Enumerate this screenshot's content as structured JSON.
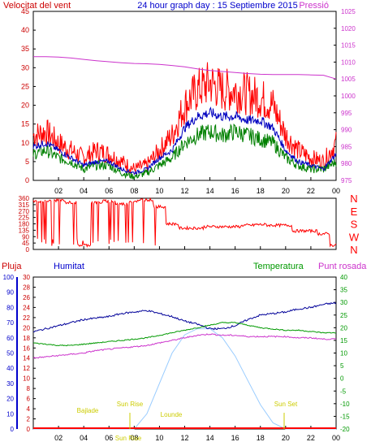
{
  "header": {
    "left": "Velocitat del vent",
    "center": "24 hour graph day : 15 Septiembre 2015",
    "right": "Pressió"
  },
  "colors": {
    "wind_gust": "#ff0000",
    "wind_avg": "#0000c0",
    "wind_green": "#008000",
    "pressure": "#cc33cc",
    "direction": "#ff0000",
    "humidity": "#000099",
    "temperature": "#009900",
    "dewpoint": "#cc33cc",
    "sun": "#99ccff",
    "rain": "#ff0000",
    "labels_yellow": "#cccc00",
    "left_axis_red": "#cc0000",
    "left_axis_blue": "#0000cc",
    "right_axis_green": "#009900"
  },
  "x_ticks": [
    "02",
    "04",
    "06",
    "08",
    "10",
    "12",
    "14",
    "16",
    "18",
    "20",
    "22",
    "00"
  ],
  "chart_data": [
    {
      "type": "line",
      "name": "wind-pressure",
      "left_axis": {
        "ticks": [
          "0",
          "5",
          "10",
          "15",
          "20",
          "25",
          "30",
          "35",
          "40",
          "45"
        ],
        "ylim": [
          0,
          45
        ]
      },
      "right_axis": {
        "ticks": [
          "975",
          "980",
          "985",
          "990",
          "995",
          "1000",
          "1005",
          "1010",
          "1015",
          "1020",
          "1025"
        ],
        "ylim": [
          975,
          1025
        ]
      },
      "x": [
        0,
        1,
        2,
        3,
        4,
        5,
        6,
        7,
        8,
        9,
        10,
        11,
        12,
        13,
        14,
        15,
        16,
        17,
        18,
        19,
        20,
        21,
        22,
        23,
        24
      ],
      "series": [
        {
          "name": "Velocitat del vent",
          "axis": "left",
          "values": [
            12,
            13,
            10,
            8,
            6,
            8,
            7,
            5,
            3,
            4,
            8,
            12,
            20,
            24,
            26,
            24,
            24,
            23,
            22,
            20,
            12,
            8,
            6,
            5,
            10
          ]
        },
        {
          "name": "wind-avg",
          "axis": "left",
          "values": [
            9,
            10,
            8,
            6,
            4,
            5,
            5,
            3,
            2,
            3,
            6,
            8,
            14,
            17,
            18,
            17,
            17,
            16,
            16,
            14,
            8,
            5,
            4,
            3,
            7
          ]
        },
        {
          "name": "wind-green",
          "axis": "left",
          "values": [
            7,
            8,
            6,
            5,
            3,
            4,
            4,
            2,
            1,
            2,
            4,
            6,
            10,
            12,
            13,
            12,
            13,
            12,
            11,
            10,
            6,
            4,
            3,
            3,
            5
          ]
        },
        {
          "name": "Pressió",
          "axis": "right",
          "values": [
            1011.6,
            1011.6,
            1011.5,
            1011.2,
            1010.8,
            1010.4,
            1010.1,
            1009.8,
            1009.6,
            1009.5,
            1009.3,
            1009.0,
            1008.6,
            1008.0,
            1007.5,
            1007.2,
            1006.9,
            1006.6,
            1006.4,
            1006.3,
            1006.3,
            1006.3,
            1006.2,
            1006.1,
            1005.0
          ]
        }
      ]
    },
    {
      "type": "line",
      "name": "wind-direction",
      "right_labels": [
        "N",
        "W",
        "S",
        "E",
        "N"
      ],
      "left_axis": {
        "ticks": [
          "0",
          "45",
          "90",
          "135",
          "180",
          "225",
          "270",
          "315",
          "360"
        ],
        "ylim": [
          0,
          360
        ]
      },
      "x": [
        0,
        1,
        2,
        3,
        4,
        5,
        6,
        7,
        8,
        9,
        10,
        11,
        12,
        13,
        14,
        15,
        16,
        17,
        18,
        19,
        20,
        21,
        22,
        23,
        24
      ],
      "series": [
        {
          "name": "direction",
          "values": [
            340,
            340,
            345,
            330,
            30,
            330,
            340,
            320,
            340,
            350,
            300,
            180,
            150,
            150,
            160,
            160,
            160,
            170,
            175,
            170,
            170,
            130,
            130,
            110,
            30
          ]
        }
      ]
    },
    {
      "type": "line",
      "name": "climate",
      "legend": [
        "Pluja",
        "Humitat",
        "Temperatura",
        "Punt rosada"
      ],
      "axis_pluja": {
        "ticks": [
          "0",
          "2",
          "4",
          "6",
          "8",
          "10",
          "12",
          "14",
          "16",
          "18",
          "20",
          "22",
          "24",
          "26",
          "28",
          "30"
        ],
        "ylim": [
          0,
          30
        ]
      },
      "axis_humitat": {
        "ticks": [
          "0",
          "10",
          "20",
          "30",
          "40",
          "50",
          "60",
          "70",
          "80",
          "90",
          "100"
        ],
        "ylim": [
          0,
          100
        ]
      },
      "axis_temp": {
        "ticks": [
          "-20",
          "-15",
          "-10",
          "-5",
          "0",
          "5",
          "10",
          "15",
          "20",
          "25",
          "30",
          "35",
          "40"
        ],
        "ylim": [
          -20,
          40
        ]
      },
      "annotations": [
        "Bajlade",
        "Sun Rise",
        "Lounde",
        "Sun Set",
        "Sun Rise"
      ],
      "x": [
        0,
        1,
        2,
        3,
        4,
        5,
        6,
        7,
        8,
        9,
        10,
        11,
        12,
        13,
        14,
        15,
        16,
        17,
        18,
        19,
        20,
        21,
        22,
        23,
        24
      ],
      "series": [
        {
          "name": "Humitat",
          "axis": "humitat",
          "values": [
            64,
            66,
            68,
            70,
            72,
            73,
            74,
            76,
            77,
            78,
            76,
            74,
            71,
            69,
            66,
            66,
            68,
            72,
            75,
            76,
            77,
            79,
            80,
            82,
            83
          ]
        },
        {
          "name": "Temperatura",
          "axis": "temp",
          "values": [
            14,
            13.5,
            13,
            13,
            13.5,
            14,
            14.5,
            15,
            15.5,
            16,
            17,
            18,
            19,
            20,
            21,
            22,
            22,
            21,
            20,
            19.5,
            19,
            19,
            18.5,
            18,
            18
          ]
        },
        {
          "name": "Punt rosada",
          "axis": "temp",
          "values": [
            8,
            8.5,
            9,
            9.5,
            10,
            11,
            11.5,
            12,
            12.5,
            13,
            14,
            15,
            16,
            17,
            17.5,
            17,
            17,
            16.5,
            16.5,
            16.5,
            16.5,
            16,
            16,
            15.5,
            15.5
          ]
        },
        {
          "name": "Sun",
          "axis": "humitat",
          "values": [
            0,
            0,
            0,
            0,
            0,
            0,
            0,
            0,
            0,
            10,
            30,
            50,
            62,
            66,
            66,
            60,
            48,
            32,
            16,
            4,
            0,
            0,
            0,
            0,
            0
          ]
        },
        {
          "name": "Pluja",
          "axis": "pluja",
          "values": [
            0,
            0,
            0,
            0,
            0,
            0,
            0,
            0,
            0,
            0,
            0,
            0,
            0,
            0,
            0,
            0,
            0,
            0,
            0,
            0,
            0,
            0,
            0,
            0,
            0
          ]
        }
      ]
    }
  ]
}
